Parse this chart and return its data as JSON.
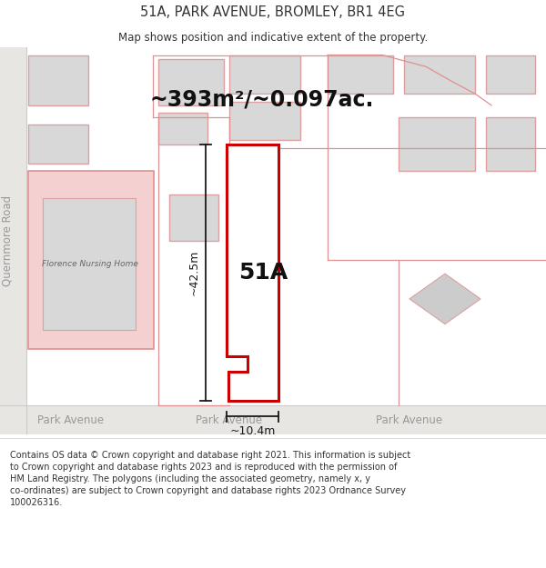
{
  "title": "51A, PARK AVENUE, BROMLEY, BR1 4EG",
  "subtitle": "Map shows position and indicative extent of the property.",
  "footer_text": "Contains OS data © Crown copyright and database right 2021. This information is subject\nto Crown copyright and database rights 2023 and is reproduced with the permission of\nHM Land Registry. The polygons (including the associated geometry, namely x, y\nco-ordinates) are subject to Crown copyright and database rights 2023 Ordnance Survey\n100026316.",
  "area_label": "~393m²/~0.097ac.",
  "label_51A": "51A",
  "dim_width": "~10.4m",
  "dim_height": "~42.5m",
  "road_label_left": "Park Avenue",
  "road_label_center": "Park Avenue",
  "road_label_right": "Park Avenue",
  "road_label_vertical": "Quernmore Road",
  "nursing_home_label": "Florence Nursing Home",
  "bg_color": "#ffffff",
  "map_bg": "#f2f0ed",
  "road_band_color": "#e8e6e2",
  "road_line_color": "#cccccc",
  "plot_outline_color": "#cc0000",
  "plot_fill_color": "#ffffff",
  "dim_line_color": "#1a1a1a",
  "building_fill": "#d8d8d8",
  "building_stroke": "#dca0a0",
  "nursing_fill": "#f5d0d0",
  "nursing_stroke": "#e09090",
  "nursing_inner_fill": "#d8d8d8",
  "text_color": "#333333",
  "road_text_color": "#999999",
  "title_fontsize": 10.5,
  "subtitle_fontsize": 8.5,
  "area_fontsize": 17,
  "label_fontsize": 18,
  "dim_fontsize": 9,
  "road_fontsize": 8.5,
  "nursing_fontsize": 6.5,
  "footer_fontsize": 7.0
}
